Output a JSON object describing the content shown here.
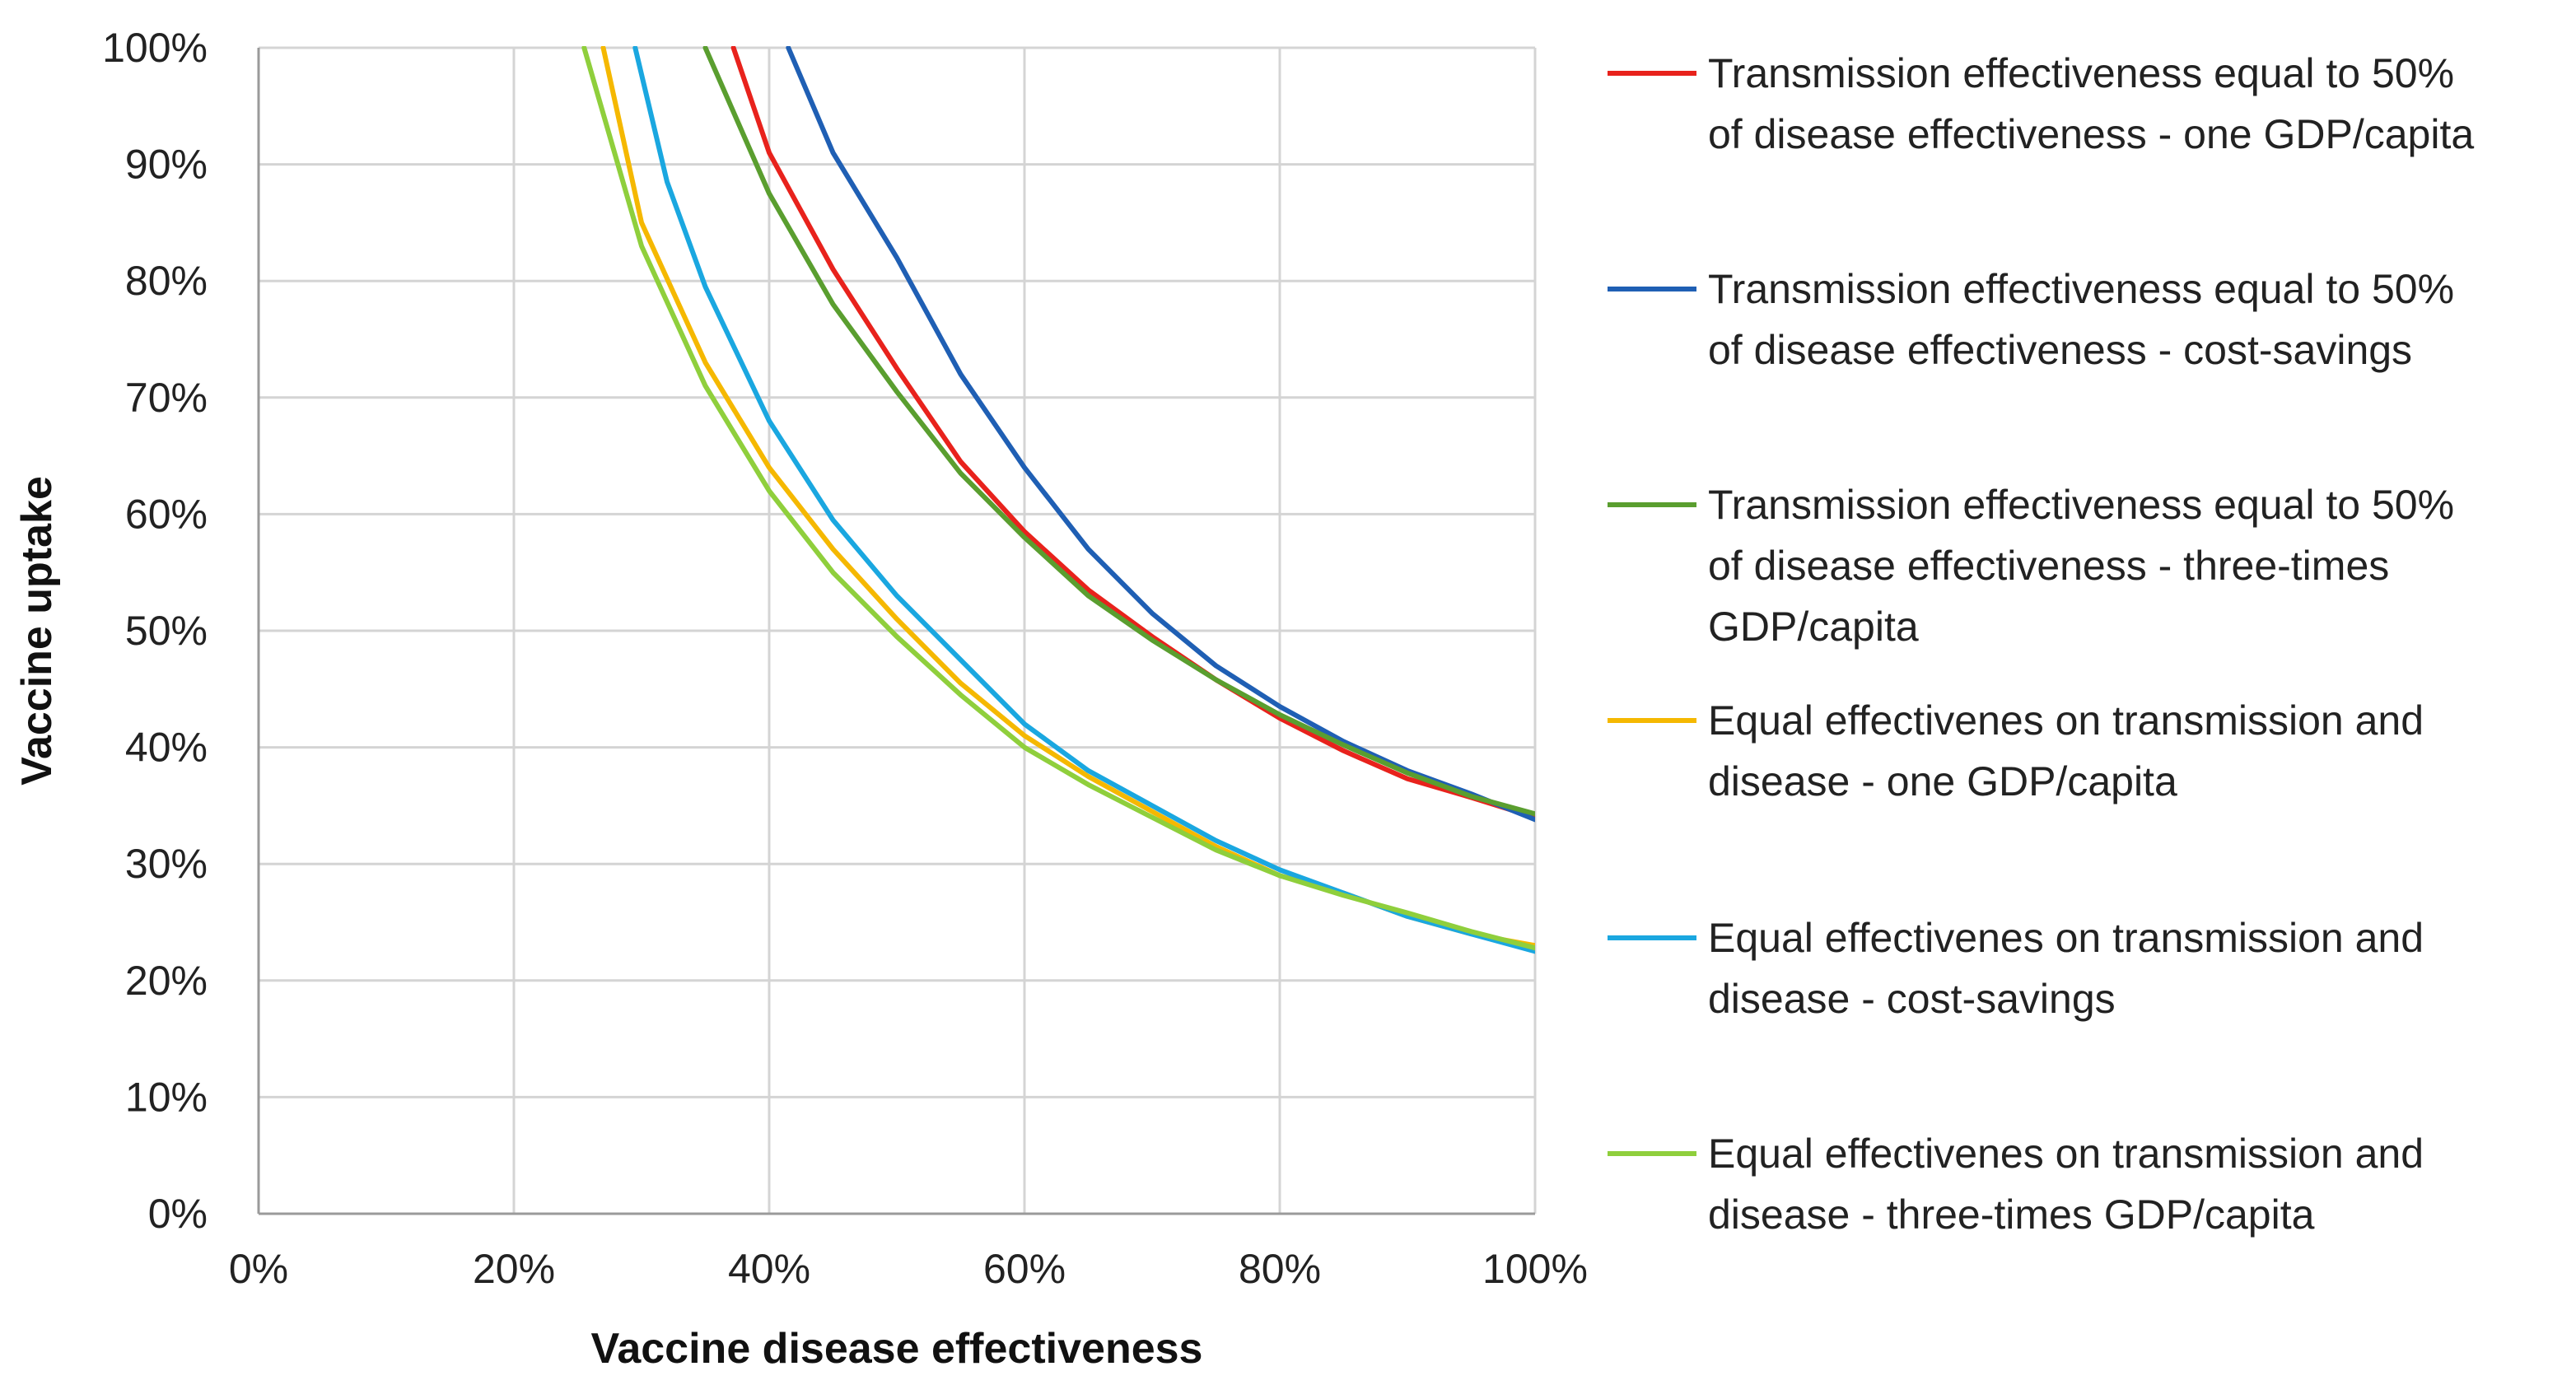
{
  "chart_data": {
    "type": "line",
    "title": "",
    "xlabel": "Vaccine disease effectiveness",
    "ylabel": "Vaccine uptake",
    "xlim": [
      0,
      100
    ],
    "ylim": [
      0,
      100
    ],
    "x_ticks": [
      "0%",
      "20%",
      "40%",
      "60%",
      "80%",
      "100%"
    ],
    "y_ticks": [
      "0%",
      "10%",
      "20%",
      "30%",
      "40%",
      "50%",
      "60%",
      "70%",
      "80%",
      "90%",
      "100%"
    ],
    "grid": true,
    "legend_position": "right",
    "series": [
      {
        "name": "Transmission effectiveness equal to 50% of disease effectiveness - one GDP/capita",
        "legend_lines": [
          "Transmission effectiveness equal to 50%",
          "of disease effectiveness - one GDP/capita"
        ],
        "color": "#e8221c",
        "x": [
          37.2,
          40,
          45,
          50,
          55,
          60,
          65,
          70,
          75,
          80,
          85,
          90,
          95,
          100
        ],
        "y": [
          100,
          91,
          81,
          72.5,
          64.5,
          58.5,
          53.5,
          49.5,
          45.8,
          42.5,
          39.7,
          37.3,
          35.7,
          34
        ]
      },
      {
        "name": "Transmission effectiveness equal to 50% of disease effectiveness - cost-savings",
        "legend_lines": [
          "Transmission effectiveness equal to 50%",
          "of disease effectiveness - cost-savings"
        ],
        "color": "#1f5fb4",
        "x": [
          41.5,
          45,
          50,
          55,
          60,
          65,
          70,
          75,
          80,
          85,
          90,
          95,
          100
        ],
        "y": [
          100,
          91,
          82,
          72,
          64,
          57,
          51.5,
          47,
          43.5,
          40.5,
          38,
          36,
          33.8
        ]
      },
      {
        "name": "Transmission effectiveness equal to 50% of disease effectiveness - three-times GDP/capita",
        "legend_lines": [
          "Transmission effectiveness equal to 50%",
          "of disease effectiveness - three-times",
          "GDP/capita"
        ],
        "color": "#5a9e2f",
        "x": [
          35,
          40,
          45,
          50,
          55,
          60,
          65,
          70,
          75,
          80,
          85,
          90,
          95,
          100
        ],
        "y": [
          100,
          87.5,
          78,
          70.5,
          63.5,
          58,
          53,
          49.2,
          45.8,
          42.8,
          40.2,
          37.8,
          35.8,
          34.3
        ]
      },
      {
        "name": "Equal effectivenes on transmission and disease - one GDP/capita",
        "legend_lines": [
          "Equal effectivenes on transmission and",
          "disease - one GDP/capita"
        ],
        "color": "#f5b800",
        "x": [
          27,
          30,
          35,
          40,
          45,
          50,
          55,
          60,
          65,
          70,
          75,
          80,
          85,
          90,
          95,
          100
        ],
        "y": [
          100,
          85,
          73,
          64,
          57,
          51,
          45.5,
          41,
          37.5,
          34.5,
          31.5,
          29,
          27.5,
          25.5,
          24,
          23
        ]
      },
      {
        "name": "Equal effectivenes on transmission and disease - cost-savings",
        "legend_lines": [
          "Equal effectivenes on transmission and",
          "disease - cost-savings"
        ],
        "color": "#1aa7e0",
        "x": [
          29.5,
          32,
          35,
          40,
          45,
          50,
          55,
          60,
          65,
          70,
          75,
          80,
          85,
          90,
          95,
          100
        ],
        "y": [
          100,
          88.5,
          79.5,
          68,
          59.5,
          53,
          47.5,
          42,
          38,
          35,
          32,
          29.5,
          27.5,
          25.5,
          24,
          22.5
        ]
      },
      {
        "name": "Equal effectivenes on transmission and disease - three-times GDP/capita",
        "legend_lines": [
          "Equal effectivenes on transmission and",
          "disease - three-times GDP/capita"
        ],
        "color": "#8fcf3c",
        "x": [
          25.5,
          30,
          35,
          40,
          45,
          50,
          55,
          60,
          65,
          70,
          75,
          80,
          85,
          90,
          95,
          100
        ],
        "y": [
          100,
          83,
          71,
          62,
          55,
          49.5,
          44.5,
          40,
          36.8,
          34,
          31.2,
          29,
          27.3,
          25.8,
          24.2,
          22.8
        ]
      }
    ]
  }
}
